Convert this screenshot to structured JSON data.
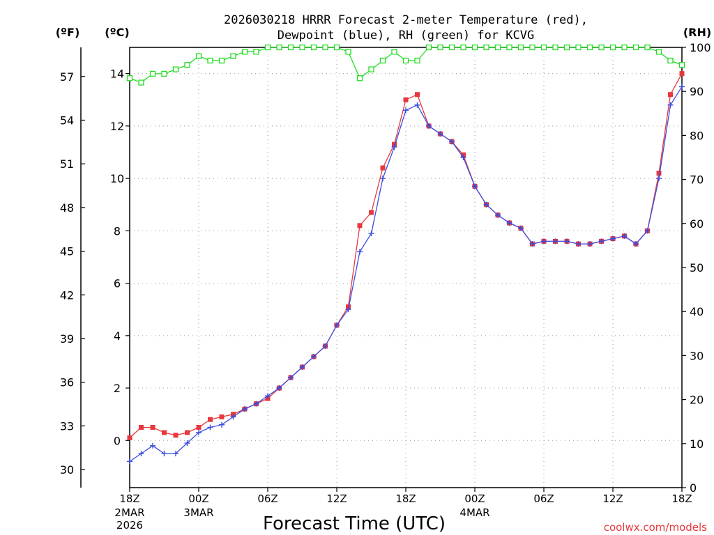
{
  "chart_data": {
    "type": "line",
    "title_line1": "2026030218 HRRR Forecast 2-meter Temperature (red),",
    "title_line2": "Dewpoint (blue), RH (green) for KCVG",
    "xlabel": "Forecast Time (UTC)",
    "watermark": "coolwx.com/models",
    "unit_f": "(ºF)",
    "unit_c": "(ºC)",
    "unit_rh": "(RH)",
    "colors": {
      "temp": "#e8383d",
      "dew": "#3a4de0",
      "rh": "#22dd22",
      "axis": "#000000",
      "grid": "#aaaaaa"
    },
    "x_range_hours": [
      0,
      48
    ],
    "y_celsius_range": [
      -1.8,
      15
    ],
    "y_rh_range": [
      0,
      100
    ],
    "x_ticks": [
      {
        "h": 0,
        "label": "18Z",
        "date": "2MAR",
        "year": "2026"
      },
      {
        "h": 6,
        "label": "00Z",
        "date": "3MAR",
        "year": ""
      },
      {
        "h": 12,
        "label": "06Z",
        "date": "",
        "year": ""
      },
      {
        "h": 18,
        "label": "12Z",
        "date": "",
        "year": ""
      },
      {
        "h": 24,
        "label": "18Z",
        "date": "",
        "year": ""
      },
      {
        "h": 30,
        "label": "00Z",
        "date": "4MAR",
        "year": ""
      },
      {
        "h": 36,
        "label": "06Z",
        "date": "",
        "year": ""
      },
      {
        "h": 42,
        "label": "12Z",
        "date": "",
        "year": ""
      },
      {
        "h": 48,
        "label": "18Z",
        "date": "",
        "year": ""
      }
    ],
    "yc_ticks": [
      0,
      2,
      4,
      6,
      8,
      10,
      12,
      14
    ],
    "yf_ticks": [
      30,
      33,
      36,
      39,
      42,
      45,
      48,
      51,
      54,
      57
    ],
    "yrh_ticks": [
      0,
      10,
      20,
      30,
      40,
      50,
      60,
      70,
      80,
      90,
      100
    ],
    "series": [
      {
        "name": "Temperature",
        "units": "degC",
        "values": [
          0.1,
          0.5,
          0.5,
          0.3,
          0.2,
          0.3,
          0.5,
          0.8,
          0.9,
          1.0,
          1.2,
          1.4,
          1.6,
          2.0,
          2.4,
          2.8,
          3.2,
          3.6,
          4.4,
          5.1,
          8.2,
          8.7,
          10.4,
          11.3,
          13.0,
          13.2,
          12.0,
          11.7,
          11.4,
          10.9,
          9.7,
          9.0,
          8.6,
          8.3,
          8.1,
          7.5,
          7.6,
          7.6,
          7.6,
          7.5,
          7.5,
          7.6,
          7.7,
          7.8,
          7.5,
          8.0,
          10.2,
          13.2,
          14.0
        ],
        "marker": "square"
      },
      {
        "name": "Dewpoint",
        "units": "degC",
        "values": [
          -0.8,
          -0.5,
          -0.2,
          -0.5,
          -0.5,
          -0.1,
          0.3,
          0.5,
          0.6,
          0.9,
          1.2,
          1.4,
          1.7,
          2.0,
          2.4,
          2.8,
          3.2,
          3.6,
          4.4,
          5.0,
          7.2,
          7.9,
          10.0,
          11.2,
          12.6,
          12.8,
          12.0,
          11.7,
          11.4,
          10.8,
          9.7,
          9.0,
          8.6,
          8.3,
          8.1,
          7.5,
          7.6,
          7.6,
          7.6,
          7.5,
          7.5,
          7.6,
          7.7,
          7.8,
          7.5,
          8.0,
          10.0,
          12.8,
          13.5
        ],
        "marker": "plus"
      },
      {
        "name": "Relative Humidity",
        "units": "percent",
        "values": [
          93,
          92,
          94,
          94,
          95,
          96,
          98,
          97,
          97,
          98,
          99,
          99,
          100,
          100,
          100,
          100,
          100,
          100,
          100,
          99,
          93,
          95,
          97,
          99,
          97,
          97,
          100,
          100,
          100,
          100,
          100,
          100,
          100,
          100,
          100,
          100,
          100,
          100,
          100,
          100,
          100,
          100,
          100,
          100,
          100,
          100,
          99,
          97,
          96
        ],
        "marker": "open-square"
      }
    ]
  }
}
